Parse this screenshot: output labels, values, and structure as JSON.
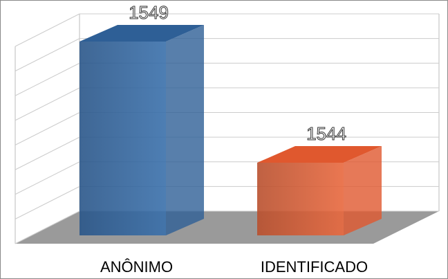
{
  "chart_data": {
    "type": "bar3d",
    "categories": [
      "ANÔNIMO",
      "IDENTIFICADO"
    ],
    "series": [
      {
        "colors": [
          "#2e5f96",
          "#e0582e"
        ],
        "values": [
          1549,
          1544
        ]
      }
    ],
    "ylim": [
      1541,
      1549
    ],
    "yticks": [
      1541,
      1542,
      1543,
      1544,
      1545,
      1546,
      1547,
      1548,
      1549
    ],
    "grid": true
  }
}
